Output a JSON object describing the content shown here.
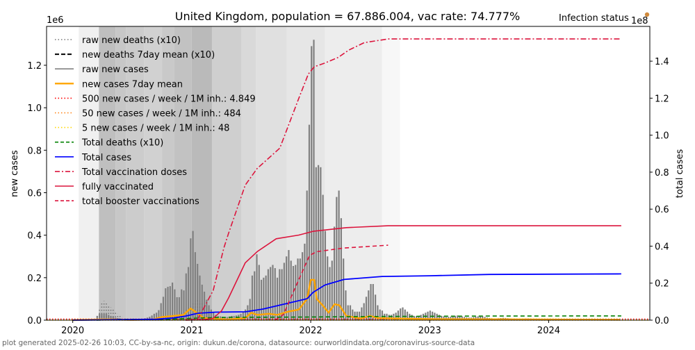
{
  "chart_data": {
    "type": "bar",
    "title": "United Kingdom, population = 67.886.004, vac rate: 74.777%",
    "status_label": "Infection status",
    "status_color": "#d08a3c",
    "ylabel_left": "new cases",
    "ylabel_right": "total cases",
    "left_multiplier": "1e6",
    "right_multiplier": "1e8",
    "xlim": [
      2019.78,
      2024.85
    ],
    "ylim_left": [
      0,
      1.383
    ],
    "ylim_right": [
      0,
      1.588
    ],
    "x_ticks": [
      {
        "value": 2020,
        "label": "2020"
      },
      {
        "value": 2021,
        "label": "2021"
      },
      {
        "value": 2022,
        "label": "2022"
      },
      {
        "value": 2023,
        "label": "2023"
      },
      {
        "value": 2024,
        "label": "2024"
      }
    ],
    "y_ticks_left": [
      {
        "value": 0,
        "label": "0.0"
      },
      {
        "value": 0.2,
        "label": "0.2"
      },
      {
        "value": 0.4,
        "label": "0.4"
      },
      {
        "value": 0.6,
        "label": "0.6"
      },
      {
        "value": 0.8,
        "label": "0.8"
      },
      {
        "value": 1.0,
        "label": "1.0"
      },
      {
        "value": 1.2,
        "label": "1.2"
      }
    ],
    "y_ticks_right": [
      {
        "value": 0,
        "label": "0.0"
      },
      {
        "value": 0.2,
        "label": "0.2"
      },
      {
        "value": 0.4,
        "label": "0.4"
      },
      {
        "value": 0.6,
        "label": "0.6"
      },
      {
        "value": 0.8,
        "label": "0.8"
      },
      {
        "value": 1.0,
        "label": "1.0"
      },
      {
        "value": 1.2,
        "label": "1.2"
      },
      {
        "value": 1.4,
        "label": "1.4"
      }
    ],
    "status_bands": [
      {
        "from": 2020.05,
        "to": 2020.22,
        "gray": 0.94
      },
      {
        "from": 2020.22,
        "to": 2020.36,
        "gray": 0.75
      },
      {
        "from": 2020.36,
        "to": 2020.45,
        "gray": 0.78
      },
      {
        "from": 2020.45,
        "to": 2020.6,
        "gray": 0.8
      },
      {
        "from": 2020.6,
        "to": 2020.75,
        "gray": 0.82
      },
      {
        "from": 2020.75,
        "to": 2020.85,
        "gray": 0.79
      },
      {
        "from": 2020.85,
        "to": 2021.0,
        "gray": 0.76
      },
      {
        "from": 2021.0,
        "to": 2021.17,
        "gray": 0.73
      },
      {
        "from": 2021.17,
        "to": 2021.42,
        "gray": 0.81
      },
      {
        "from": 2021.42,
        "to": 2021.54,
        "gray": 0.85
      },
      {
        "from": 2021.54,
        "to": 2021.8,
        "gray": 0.88
      },
      {
        "from": 2021.8,
        "to": 2022.12,
        "gray": 0.9
      },
      {
        "from": 2022.12,
        "to": 2022.6,
        "gray": 0.93
      },
      {
        "from": 2022.6,
        "to": 2022.75,
        "gray": 0.97
      }
    ],
    "bars_raw_new_cases": {
      "start": 2020.167,
      "step_days": 7,
      "color": "#808080",
      "values": [
        0.001,
        0.005,
        0.02,
        0.03,
        0.03,
        0.03,
        0.03,
        0.025,
        0.02,
        0.015,
        0.012,
        0.01,
        0.008,
        0.006,
        0.005,
        0.004,
        0.004,
        0.004,
        0.004,
        0.005,
        0.005,
        0.006,
        0.007,
        0.009,
        0.012,
        0.016,
        0.022,
        0.03,
        0.035,
        0.047,
        0.08,
        0.11,
        0.15,
        0.157,
        0.16,
        0.177,
        0.145,
        0.108,
        0.108,
        0.145,
        0.14,
        0.22,
        0.25,
        0.385,
        0.42,
        0.32,
        0.265,
        0.21,
        0.167,
        0.134,
        0.096,
        0.07,
        0.05,
        0.035,
        0.025,
        0.02,
        0.018,
        0.016,
        0.015,
        0.015,
        0.017,
        0.02,
        0.02,
        0.022,
        0.025,
        0.03,
        0.04,
        0.05,
        0.07,
        0.1,
        0.21,
        0.23,
        0.31,
        0.26,
        0.19,
        0.2,
        0.21,
        0.24,
        0.25,
        0.26,
        0.245,
        0.2,
        0.24,
        0.24,
        0.27,
        0.3,
        0.33,
        0.28,
        0.255,
        0.26,
        0.29,
        0.29,
        0.32,
        0.36,
        0.61,
        0.92,
        1.29,
        1.32,
        0.72,
        0.73,
        0.72,
        0.59,
        0.42,
        0.3,
        0.25,
        0.28,
        0.44,
        0.58,
        0.61,
        0.48,
        0.29,
        0.14,
        0.07,
        0.07,
        0.05,
        0.04,
        0.04,
        0.04,
        0.06,
        0.08,
        0.11,
        0.14,
        0.17,
        0.17,
        0.12,
        0.07,
        0.05,
        0.045,
        0.03,
        0.03,
        0.025,
        0.025,
        0.03,
        0.035,
        0.045,
        0.055,
        0.06,
        0.05,
        0.04,
        0.03,
        0.025,
        0.02,
        0.018,
        0.02,
        0.025,
        0.03,
        0.035,
        0.04,
        0.045,
        0.04,
        0.035,
        0.03,
        0.025,
        0.02,
        0.018,
        0.015,
        0.015,
        0.016,
        0.018,
        0.02,
        0.022,
        0.02,
        0.018,
        0.015,
        0.013,
        0.012,
        0.012,
        0.014,
        0.016,
        0.018,
        0.02,
        0.018,
        0.015,
        0.012,
        0.01,
        0.009,
        0.008,
        0.008,
        0.009,
        0.01,
        0.011,
        0.01,
        0.009,
        0.008,
        0.007,
        0.007,
        0.006,
        0.006,
        0.006,
        0.007,
        0.008,
        0.008,
        0.007,
        0.006,
        0.005,
        0.005,
        0.005,
        0.005,
        0.006,
        0.006,
        0.005,
        0.005,
        0.004,
        0.004,
        0.004,
        0.004,
        0.004,
        0.004,
        0.004,
        0.004,
        0.005,
        0.005,
        0.005,
        0.004,
        0.004,
        0.003,
        0.003,
        0.003,
        0.003,
        0.003,
        0.003,
        0.003,
        0.003,
        0.003,
        0.003,
        0.003,
        0.002,
        0.002,
        0.002,
        0.002,
        0.002,
        0.002
      ]
    },
    "raw_new_deaths_x10": {
      "start": 2020.167,
      "step_days": 7,
      "color": "#777777",
      "values": [
        0,
        0.005,
        0.02,
        0.05,
        0.08,
        0.09,
        0.085,
        0.07,
        0.06,
        0.05,
        0.04,
        0.03,
        0.022,
        0.015,
        0.01,
        0.007,
        0.005,
        0.004,
        0.003,
        0.003,
        0.002,
        0,
        0,
        0,
        0,
        0,
        0,
        0,
        0,
        0,
        0,
        0.005,
        0.01,
        0.015,
        0.02,
        0.025,
        0.03,
        0.03,
        0.03,
        0.035,
        0.04,
        0.05,
        0.06,
        0.07,
        0.08,
        0.09,
        0.1,
        0.09,
        0.08,
        0.06,
        0.04,
        0.03,
        0.02
      ]
    },
    "series": [
      {
        "name": "new cases 7day mean",
        "axis": "left",
        "color": "#ffa500",
        "dash": "",
        "width": 2.4,
        "points": [
          [
            2020.0,
            0
          ],
          [
            2020.2,
            0.003
          ],
          [
            2020.3,
            0.004
          ],
          [
            2020.5,
            0.001
          ],
          [
            2020.67,
            0.003
          ],
          [
            2020.75,
            0.015
          ],
          [
            2020.85,
            0.02
          ],
          [
            2020.93,
            0.025
          ],
          [
            2020.99,
            0.055
          ],
          [
            2021.03,
            0.04
          ],
          [
            2021.1,
            0.01
          ],
          [
            2021.3,
            0.003
          ],
          [
            2021.45,
            0.01
          ],
          [
            2021.5,
            0.035
          ],
          [
            2021.55,
            0.025
          ],
          [
            2021.65,
            0.03
          ],
          [
            2021.72,
            0.025
          ],
          [
            2021.81,
            0.04
          ],
          [
            2021.9,
            0.05
          ],
          [
            2021.97,
            0.1
          ],
          [
            2022.0,
            0.19
          ],
          [
            2022.03,
            0.19
          ],
          [
            2022.05,
            0.1
          ],
          [
            2022.1,
            0.07
          ],
          [
            2022.15,
            0.035
          ],
          [
            2022.2,
            0.075
          ],
          [
            2022.24,
            0.07
          ],
          [
            2022.3,
            0.02
          ],
          [
            2022.42,
            0.008
          ],
          [
            2022.5,
            0.02
          ],
          [
            2022.56,
            0.01
          ],
          [
            2022.7,
            0.008
          ],
          [
            2023.0,
            0.005
          ],
          [
            2024.6,
            0.002
          ]
        ]
      },
      {
        "name": "Total deaths (x10)",
        "axis": "right",
        "color": "#008000",
        "dash": "6,4",
        "width": 1.6,
        "points": [
          [
            2020.2,
            0
          ],
          [
            2020.4,
            0.004
          ],
          [
            2020.8,
            0.005
          ],
          [
            2021.1,
            0.012
          ],
          [
            2021.3,
            0.015
          ],
          [
            2022.0,
            0.017
          ],
          [
            2022.6,
            0.02
          ],
          [
            2023.5,
            0.022
          ],
          [
            2024.61,
            0.023
          ]
        ]
      },
      {
        "name": "Total cases",
        "axis": "right",
        "color": "#0000ff",
        "dash": "",
        "width": 1.8,
        "points": [
          [
            2020.0,
            0
          ],
          [
            2020.2,
            0.001
          ],
          [
            2020.5,
            0.003
          ],
          [
            2020.7,
            0.005
          ],
          [
            2020.85,
            0.012
          ],
          [
            2020.95,
            0.022
          ],
          [
            2021.05,
            0.037
          ],
          [
            2021.2,
            0.043
          ],
          [
            2021.45,
            0.045
          ],
          [
            2021.6,
            0.06
          ],
          [
            2021.8,
            0.09
          ],
          [
            2021.97,
            0.116
          ],
          [
            2022.02,
            0.15
          ],
          [
            2022.12,
            0.19
          ],
          [
            2022.28,
            0.22
          ],
          [
            2022.6,
            0.236
          ],
          [
            2023.0,
            0.24
          ],
          [
            2023.5,
            0.247
          ],
          [
            2024.61,
            0.25
          ]
        ]
      },
      {
        "name": "Total vaccination doses",
        "axis": "right",
        "color": "#dc143c",
        "dash": "8,3,2,3",
        "width": 1.6,
        "points": [
          [
            2020.95,
            0
          ],
          [
            2021.05,
            0.005
          ],
          [
            2021.18,
            0.16
          ],
          [
            2021.27,
            0.39
          ],
          [
            2021.31,
            0.47
          ],
          [
            2021.45,
            0.73
          ],
          [
            2021.55,
            0.82
          ],
          [
            2021.62,
            0.86
          ],
          [
            2021.74,
            0.93
          ],
          [
            2021.9,
            1.2
          ],
          [
            2021.98,
            1.33
          ],
          [
            2022.03,
            1.37
          ],
          [
            2022.12,
            1.39
          ],
          [
            2022.23,
            1.42
          ],
          [
            2022.32,
            1.46
          ],
          [
            2022.45,
            1.5
          ],
          [
            2022.65,
            1.52
          ],
          [
            2024.61,
            1.52
          ]
        ]
      },
      {
        "name": "fully vaccinated",
        "axis": "right",
        "color": "#dc143c",
        "dash": "",
        "width": 1.6,
        "points": [
          [
            2020.95,
            0
          ],
          [
            2021.1,
            0.002
          ],
          [
            2021.18,
            0.01
          ],
          [
            2021.25,
            0.05
          ],
          [
            2021.31,
            0.12
          ],
          [
            2021.45,
            0.31
          ],
          [
            2021.55,
            0.37
          ],
          [
            2021.71,
            0.44
          ],
          [
            2021.9,
            0.46
          ],
          [
            2022.02,
            0.48
          ],
          [
            2022.3,
            0.5
          ],
          [
            2022.65,
            0.51
          ],
          [
            2024.61,
            0.51
          ]
        ]
      },
      {
        "name": "total booster vaccinations",
        "axis": "right",
        "color": "#dc143c",
        "dash": "6,4",
        "width": 1.6,
        "points": [
          [
            2021.7,
            0
          ],
          [
            2021.77,
            0.03
          ],
          [
            2021.9,
            0.22
          ],
          [
            2021.99,
            0.35
          ],
          [
            2022.05,
            0.37
          ],
          [
            2022.28,
            0.39
          ],
          [
            2022.65,
            0.405
          ]
        ]
      }
    ],
    "thresholds": [
      {
        "name": "500 new cases / week / 1M inh.",
        "value": 0.004849,
        "color": "#ff0000"
      },
      {
        "name": "50 new cases / week / 1M inh.",
        "value": 0.000484,
        "color": "#ff7f0e"
      },
      {
        "name": "5 new cases / week / 1M inh.",
        "value": 4.8e-05,
        "color": "#ffd700"
      }
    ],
    "legend": [
      {
        "label": "raw new deaths (x10)",
        "color": "#777777",
        "dash": "1.5,3",
        "width": 1.6
      },
      {
        "label": "new deaths 7day mean (x10)",
        "color": "#000000",
        "dash": "6,3",
        "width": 2
      },
      {
        "label": "raw new cases",
        "color": "#808080",
        "dash": "",
        "width": 1.6
      },
      {
        "label": "new cases 7day mean",
        "color": "#ffa500",
        "dash": "",
        "width": 2.4
      },
      {
        "label": "500 new cases / week / 1M inh.: 4.849",
        "color": "#ff0000",
        "dash": "1.5,3",
        "width": 1.6
      },
      {
        "label": "50 new cases / week / 1M inh.: 484",
        "color": "#ff7f0e",
        "dash": "1.5,3",
        "width": 1.6
      },
      {
        "label": "5 new cases / week / 1M inh.: 48",
        "color": "#ffd700",
        "dash": "1.5,3",
        "width": 1.6
      },
      {
        "label": "Total deaths (x10)",
        "color": "#008000",
        "dash": "5,3",
        "width": 1.6
      },
      {
        "label": "Total cases",
        "color": "#0000ff",
        "dash": "",
        "width": 1.6
      },
      {
        "label": "Total vaccination doses",
        "color": "#dc143c",
        "dash": "7,3,2,3",
        "width": 1.6
      },
      {
        "label": "fully vaccinated",
        "color": "#dc143c",
        "dash": "",
        "width": 1.6
      },
      {
        "label": "total booster vaccinations",
        "color": "#dc143c",
        "dash": "5,3",
        "width": 1.6
      }
    ],
    "footer": "plot generated 2025-02-26 10:03, CC-by-sa-nc, origin: dukun.de/corona, datasource: ourworldindata.org/coronavirus-source-data"
  }
}
